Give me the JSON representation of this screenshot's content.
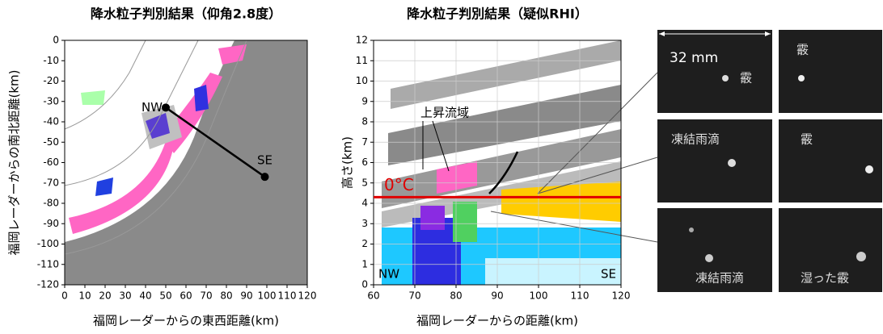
{
  "chart_data": [
    {
      "type": "map",
      "title": "降水粒子判別結果（仰角2.8度）",
      "xlabel": "福岡レーダーからの東西距離(km)",
      "ylabel": "福岡レーダーからの南北距離(km)",
      "xlim": [
        0,
        120
      ],
      "xticks": [
        0,
        10,
        20,
        30,
        40,
        50,
        60,
        70,
        80,
        90,
        100,
        110,
        120
      ],
      "ylim": [
        -120,
        0
      ],
      "yticks": [
        0,
        -10,
        -20,
        -30,
        -40,
        -50,
        -60,
        -70,
        -80,
        -90,
        -100,
        -110,
        -120
      ],
      "grid": false,
      "points": [
        {
          "label": "NW",
          "x": 50,
          "y": -33
        },
        {
          "label": "SE",
          "x": 99,
          "y": -67
        }
      ]
    },
    {
      "type": "rhi",
      "title": "降水粒子判別結果（疑似RHI）",
      "xlabel": "福岡レーダーからの距離(km)",
      "ylabel": "高さ(km)",
      "xlim": [
        60,
        120
      ],
      "xticks": [
        60,
        70,
        80,
        90,
        100,
        110,
        120
      ],
      "ylim": [
        0,
        12
      ],
      "yticks": [
        0,
        1,
        2,
        3,
        4,
        5,
        6,
        7,
        8,
        9,
        10,
        11,
        12
      ],
      "grid": true,
      "freezing_level": {
        "value": 4.3,
        "label": "0°C"
      },
      "annotations": [
        "上昇流域",
        "NW",
        "SE"
      ]
    }
  ],
  "photos": {
    "scale_label": "32 mm",
    "panels": [
      "霰",
      "霰",
      "凍結雨滴",
      "霰",
      "凍結雨滴",
      "湿った霰"
    ]
  }
}
